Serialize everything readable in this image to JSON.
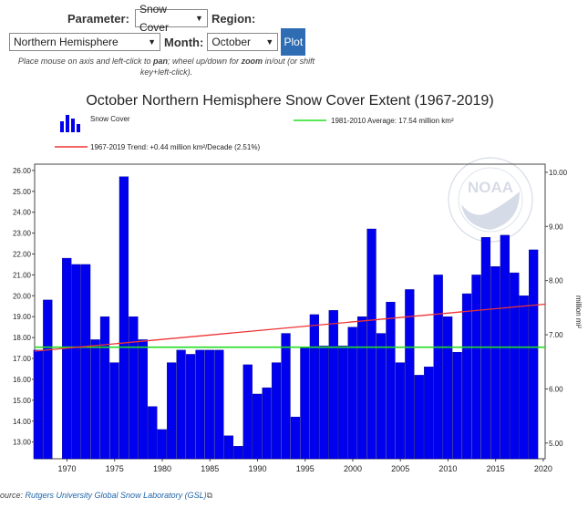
{
  "controls": {
    "parameter_label": "Parameter:",
    "parameter_value": "Snow Cover",
    "region_label": "Region:",
    "region_value": "Northern Hemisphere",
    "month_label": "Month:",
    "month_value": "October",
    "plot_button": "Plot",
    "hint_1": "Place mouse on axis and left-click to ",
    "hint_pan": "pan",
    "hint_2": "; wheel up/down for ",
    "hint_zoom": "zoom",
    "hint_3": " in/out (or shift",
    "hint_4": "key+left-click)."
  },
  "chart_data": {
    "type": "bar",
    "title": "October Northern Hemisphere Snow Cover Extent (1967-2019)",
    "y_unit_right": "million mi²",
    "ylim": [
      12.2,
      26.3
    ],
    "ylim_right": [
      4.71,
      10.15
    ],
    "x_range": [
      1966.6,
      2020.2
    ],
    "x_ticks": [
      1970,
      1975,
      1980,
      1985,
      1990,
      1995,
      2000,
      2005,
      2010,
      2015,
      2020
    ],
    "y_ticks": [
      "26.00",
      "25.00",
      "24.00",
      "23.00",
      "22.00",
      "21.00",
      "20.00",
      "19.00",
      "18.00",
      "17.00",
      "16.00",
      "15.00",
      "14.00",
      "13.00"
    ],
    "y_ticks_right": [
      "10.00",
      "9.00",
      "8.00",
      "7.00",
      "6.00",
      "5.00"
    ],
    "legend": {
      "bars": "Snow Cover",
      "average": "1981-2010 Average: 17.54 million km²",
      "trend": "1967-2019 Trend: +0.44 million km²/Decade (2.51%)"
    },
    "average_value": 17.54,
    "trend": {
      "start_year": 1967,
      "start_value": 17.35,
      "end_year": 2019,
      "end_value": 19.6
    },
    "series": [
      {
        "name": "Snow Cover",
        "color": "#0000ee",
        "x": [
          1967,
          1968,
          1969,
          1970,
          1971,
          1972,
          1973,
          1974,
          1975,
          1976,
          1977,
          1978,
          1979,
          1980,
          1981,
          1982,
          1983,
          1984,
          1985,
          1986,
          1987,
          1988,
          1989,
          1990,
          1991,
          1992,
          1993,
          1994,
          1995,
          1996,
          1997,
          1998,
          1999,
          2000,
          2001,
          2002,
          2003,
          2004,
          2005,
          2006,
          2007,
          2008,
          2009,
          2010,
          2011,
          2012,
          2013,
          2014,
          2015,
          2016,
          2017,
          2018,
          2019
        ],
        "values": [
          17.4,
          19.8,
          null,
          21.8,
          21.5,
          21.5,
          17.9,
          19.0,
          16.8,
          25.7,
          19.0,
          17.9,
          14.7,
          13.6,
          16.8,
          17.4,
          17.2,
          17.4,
          17.4,
          17.4,
          13.3,
          12.8,
          16.7,
          15.3,
          15.6,
          16.8,
          18.2,
          14.2,
          17.5,
          19.1,
          17.6,
          19.3,
          17.6,
          18.5,
          19.0,
          23.2,
          18.2,
          19.7,
          16.8,
          20.3,
          16.2,
          16.6,
          21.0,
          19.0,
          17.3,
          20.1,
          21.0,
          22.8,
          21.4,
          22.9,
          21.1,
          20.0,
          22.2
        ]
      },
      {
        "name": "1981-2010 Average",
        "color": "#22dd22"
      },
      {
        "name": "1967-2019 Trend",
        "color": "#ee3333"
      }
    ]
  },
  "source": {
    "prefix": "ource: ",
    "link": "Rutgers University Global Snow Laboratory (GSL)",
    "link_icon": "external-link-icon"
  },
  "logo": {
    "text": "NOAA"
  }
}
